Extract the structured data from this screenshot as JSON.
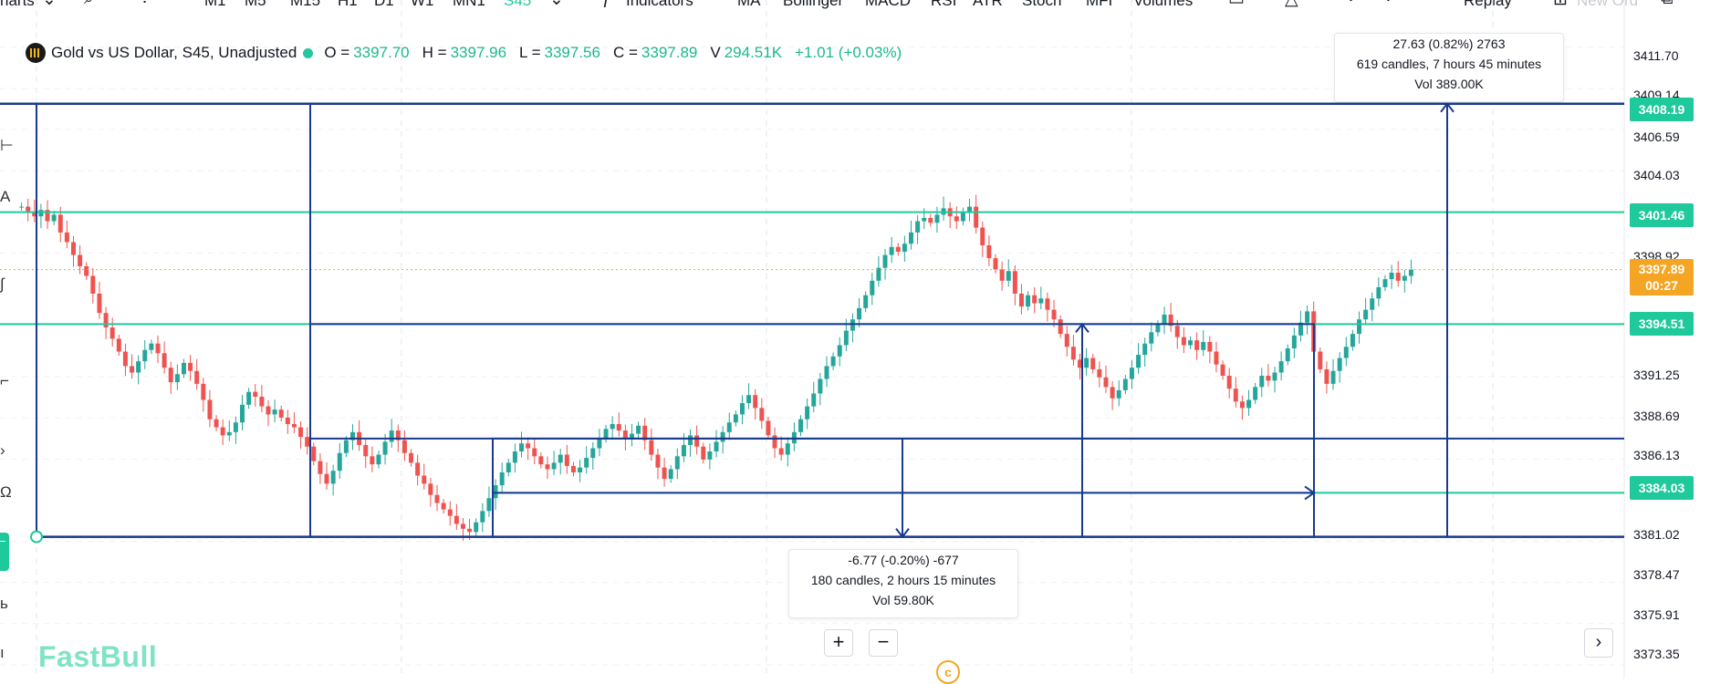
{
  "toolbar": {
    "charts_menu": "harts",
    "timeframes": [
      "M1",
      "M5",
      "M15",
      "H1",
      "D1",
      "W1",
      "MN1"
    ],
    "active_timeframe": "S45",
    "indicators_label": "Indicators",
    "indicators": [
      "MA",
      "Bollinger",
      "MACD",
      "RSI",
      "ATR",
      "Stoch",
      "MFI",
      "Volumes"
    ],
    "replay_label": "Replay",
    "new_order_label": "New Ord"
  },
  "legend": {
    "title": "Gold vs US Dollar, S45, Unadjusted",
    "o_label": "O =",
    "o_value": "3397.70",
    "h_label": "H =",
    "h_value": "3397.96",
    "l_label": "L =",
    "l_value": "3397.56",
    "c_label": "C =",
    "c_value": "3397.89",
    "v_label": "V",
    "v_value": "294.51K",
    "change": "+1.01 (+0.03%)"
  },
  "price_axis": {
    "labels": [
      "3411.70",
      "3409.14",
      "3406.59",
      "3404.03",
      "3398.92",
      "3391.25",
      "3388.69",
      "3386.13",
      "3381.02",
      "3378.47",
      "3375.91",
      "3373.35"
    ],
    "badges": {
      "top_line": "3408.19",
      "upper_line": "3401.46",
      "current_price": "3397.89",
      "countdown": "00:27",
      "mid_line": "3394.51",
      "lower_line": "3384.03"
    }
  },
  "measure_up": {
    "line1": "27.63 (0.82%) 2763",
    "line2": "619 candles, 7 hours 45 minutes",
    "line3": "Vol 389.00K"
  },
  "measure_down": {
    "line1": "-6.77 (-0.20%) -677",
    "line2": "180 candles, 2 hours 15 minutes",
    "line3": "Vol 59.80K"
  },
  "zoom": {
    "plus": "+",
    "minus": "−"
  },
  "branding": {
    "logo": "FastBull",
    "copyright": "c"
  },
  "colors": {
    "up": "#26a69a",
    "down": "#ef5350",
    "drawing": "#1a3a8f",
    "accent": "#1ec99c",
    "current": "#f5a524"
  },
  "chart_data": {
    "type": "candlestick",
    "y_range": [
      3372.5,
      3413.5
    ],
    "close_series": [
      3401.8,
      3401.5,
      3401.2,
      3401.6,
      3400.9,
      3401.3,
      3400.2,
      3399.6,
      3398.8,
      3398.1,
      3397.5,
      3396.4,
      3395.2,
      3394.3,
      3393.6,
      3392.8,
      3391.9,
      3391.5,
      3392.2,
      3392.9,
      3393.3,
      3392.7,
      3391.8,
      3390.9,
      3391.4,
      3392.1,
      3391.6,
      3390.8,
      3389.8,
      3388.6,
      3388.1,
      3387.6,
      3387.8,
      3388.4,
      3389.5,
      3390.3,
      3390.0,
      3389.4,
      3388.9,
      3389.2,
      3388.7,
      3388.3,
      3388.1,
      3387.5,
      3386.9,
      3386.0,
      3385.2,
      3384.6,
      3385.4,
      3386.5,
      3387.3,
      3387.8,
      3387.0,
      3386.3,
      3385.8,
      3386.4,
      3387.2,
      3387.9,
      3387.3,
      3386.5,
      3385.9,
      3385.1,
      3384.6,
      3383.9,
      3383.4,
      3383.0,
      3382.6,
      3382.1,
      3381.8,
      3381.6,
      3382.2,
      3382.9,
      3383.7,
      3384.5,
      3385.3,
      3385.9,
      3386.6,
      3387.1,
      3386.8,
      3386.3,
      3385.8,
      3385.5,
      3385.9,
      3386.4,
      3385.7,
      3385.3,
      3385.6,
      3386.2,
      3386.8,
      3387.4,
      3388.0,
      3388.3,
      3387.9,
      3387.4,
      3387.7,
      3388.2,
      3387.3,
      3386.4,
      3385.6,
      3384.9,
      3385.5,
      3386.3,
      3387.0,
      3387.6,
      3386.9,
      3386.1,
      3386.6,
      3387.2,
      3387.8,
      3388.4,
      3388.9,
      3389.6,
      3390.1,
      3389.3,
      3388.5,
      3387.6,
      3386.8,
      3386.4,
      3387.1,
      3387.8,
      3388.6,
      3389.4,
      3390.2,
      3391.1,
      3391.9,
      3392.5,
      3393.2,
      3394.1,
      3394.8,
      3395.5,
      3396.3,
      3397.2,
      3398.0,
      3398.8,
      3399.3,
      3399.0,
      3399.5,
      3400.2,
      3400.9,
      3401.1,
      3400.8,
      3401.3,
      3401.7,
      3401.2,
      3400.9,
      3401.5,
      3401.8,
      3400.5,
      3399.4,
      3398.6,
      3397.9,
      3397.2,
      3397.8,
      3396.4,
      3395.6,
      3396.3,
      3395.8,
      3396.1,
      3395.4,
      3394.8,
      3393.9,
      3393.1,
      3392.3,
      3391.8,
      3392.4,
      3391.7,
      3391.2,
      3390.6,
      3389.9,
      3390.4,
      3391.1,
      3391.8,
      3392.6,
      3393.3,
      3394.0,
      3394.5,
      3395.1,
      3394.4,
      3393.7,
      3393.2,
      3393.5,
      3392.9,
      3393.4,
      3392.8,
      3392.0,
      3391.3,
      3390.5,
      3389.7,
      3389.3,
      3389.8,
      3390.6,
      3391.3,
      3391.0,
      3391.5,
      3392.2,
      3393.0,
      3393.8,
      3394.6,
      3395.3,
      3392.8,
      3391.7,
      3390.8,
      3391.6,
      3392.4,
      3393.1,
      3393.9,
      3394.8,
      3395.4,
      3396.1,
      3396.8,
      3397.3,
      3397.7,
      3397.2,
      3397.5,
      3397.9
    ]
  }
}
